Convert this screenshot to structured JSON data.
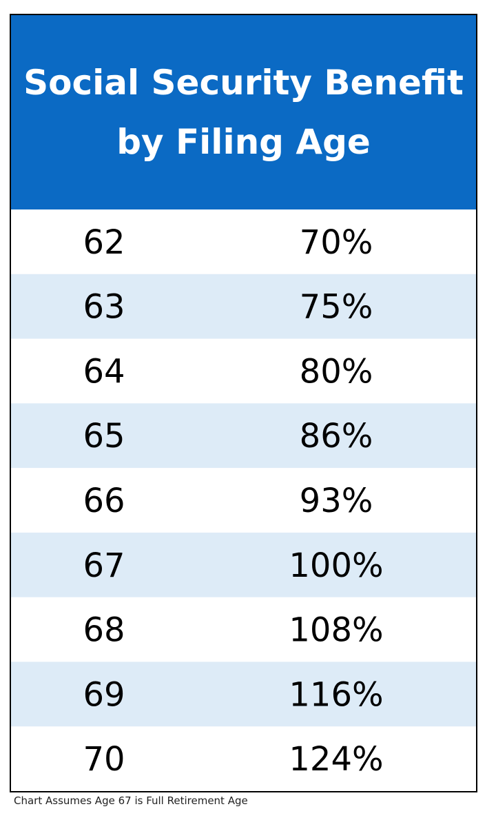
{
  "title_line1": "Social Security Benefit",
  "title_line2": "by Filing Age",
  "footnote": "Chart Assumes Age 67 is Full Retirement Age",
  "colors": {
    "header_bg": "#0B6AC4",
    "header_text": "#FFFFFF",
    "row_alt": "#DDEBF7",
    "row_base": "#FFFFFF",
    "text": "#000000"
  },
  "chart_data": {
    "type": "table",
    "title": "Social Security Benefit by Filing Age",
    "columns": [
      "age",
      "benefit_percent"
    ],
    "rows": [
      {
        "age": "62",
        "benefit": "70%",
        "value": 70
      },
      {
        "age": "63",
        "benefit": "75%",
        "value": 75
      },
      {
        "age": "64",
        "benefit": "80%",
        "value": 80
      },
      {
        "age": "65",
        "benefit": "86%",
        "value": 86
      },
      {
        "age": "66",
        "benefit": "93%",
        "value": 93
      },
      {
        "age": "67",
        "benefit": "100%",
        "value": 100
      },
      {
        "age": "68",
        "benefit": "108%",
        "value": 108
      },
      {
        "age": "69",
        "benefit": "116%",
        "value": 116
      },
      {
        "age": "70",
        "benefit": "124%",
        "value": 124
      }
    ]
  }
}
